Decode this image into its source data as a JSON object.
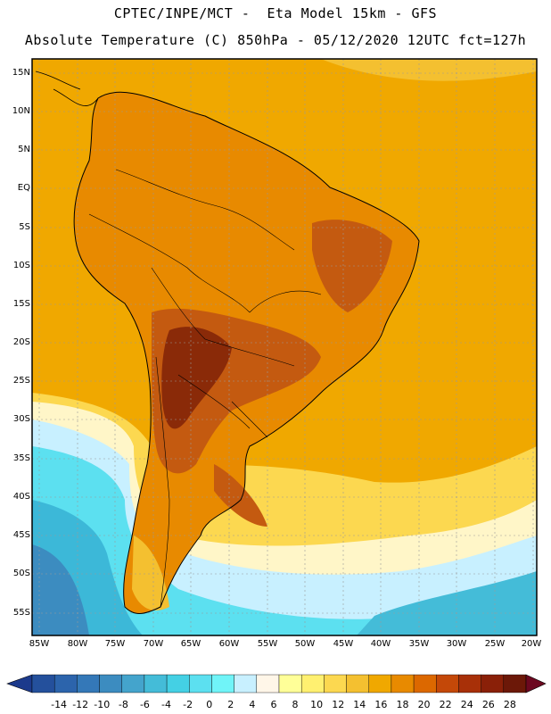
{
  "header": {
    "line1": "CPTEC/INPE/MCT -  Eta Model 15km - GFS",
    "line2": "Absolute Temperature (C) 850hPa - 05/12/2020 12UTC fct=127h"
  },
  "map": {
    "lat_labels": [
      "15N",
      "10N",
      "5N",
      "EQ",
      "5S",
      "10S",
      "15S",
      "20S",
      "25S",
      "30S",
      "35S",
      "40S",
      "45S",
      "50S",
      "55S"
    ],
    "lon_labels": [
      "85W",
      "80W",
      "75W",
      "70W",
      "65W",
      "60W",
      "55W",
      "50W",
      "45W",
      "40W",
      "35W",
      "30W",
      "25W",
      "20W"
    ],
    "land_colors": {
      "ocean_warm": "#f0a800",
      "ocean_mid": "#f0c040",
      "land": "#e88a00",
      "hot": "#c45a10",
      "hottest": "#8a2a08",
      "cool": "#fff6c8",
      "cold1": "#c8f0ff",
      "cold2": "#5ce0f0",
      "cold3": "#3cb8d8",
      "cold4": "#3c8cc0"
    }
  },
  "legend": {
    "labels": [
      "-14",
      "-12",
      "-10",
      "-8",
      "-6",
      "-4",
      "-2",
      "0",
      "2",
      "4",
      "6",
      "8",
      "10",
      "12",
      "14",
      "16",
      "18",
      "20",
      "22",
      "24",
      "26",
      "28"
    ],
    "colors": [
      "#1c3a8c",
      "#24509c",
      "#2c64ac",
      "#3478b8",
      "#3c8cc0",
      "#44a4cc",
      "#44bcd8",
      "#44d0e4",
      "#5ce0f0",
      "#70f4f8",
      "#c8f0ff",
      "#fff6e8",
      "#ffff98",
      "#fff070",
      "#fcd850",
      "#f4c030",
      "#f0a800",
      "#e88a00",
      "#dc6800",
      "#c44808",
      "#a83008",
      "#8a2008",
      "#6c1808",
      "#6c0820"
    ]
  }
}
